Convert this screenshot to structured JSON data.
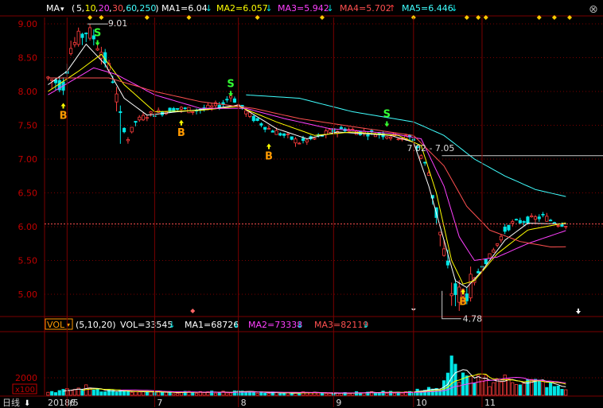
{
  "colors": {
    "bg": "#000000",
    "grid": "#7a0000",
    "axis_text": "#c00000",
    "up": "#ff3c3c",
    "down": "#00e5e5",
    "ma5": "#ffffff",
    "ma10": "#ffff00",
    "ma20": "#ff40ff",
    "ma30": "#ff5050",
    "ma60": "#40ffff",
    "marker_buy": "#ff9900",
    "marker_sell": "#33ff33",
    "diamond": "#ffcc00",
    "dotted_line": "#cccccc"
  },
  "top_legend": {
    "ma_button": "MA",
    "params_open": "(",
    "params": [
      "5",
      "10",
      "20",
      "30",
      "60",
      "250"
    ],
    "params_close": ")",
    "items": [
      {
        "label": "MA1=6.04",
        "arrow": "↓",
        "color": "#ffffff",
        "arrow_color": "#00e5e5"
      },
      {
        "label": "MA2=6.057",
        "arrow": "↓",
        "color": "#ffff00",
        "arrow_color": "#00e5e5"
      },
      {
        "label": "MA3=5.942",
        "arrow": "↓",
        "color": "#ff40ff",
        "arrow_color": "#00e5e5"
      },
      {
        "label": "MA4=5.702",
        "arrow": "↑",
        "color": "#ff5050",
        "arrow_color": "#ff3c3c"
      },
      {
        "label": "MA5=6.446",
        "arrow": "↓",
        "color": "#40ffff",
        "arrow_color": "#00e5e5"
      }
    ],
    "param_colors": [
      "#ffffff",
      "#ffff00",
      "#ff40ff",
      "#ff5050",
      "#40ffff",
      "#40ffff"
    ]
  },
  "vol_legend": {
    "button": "VOL",
    "params": "(5,10,20)",
    "items": [
      {
        "label": "VOL=33545",
        "arrow": "↓",
        "color": "#ffffff",
        "arrow_color": "#00e5e5"
      },
      {
        "label": "MA1=68726",
        "arrow": "↓",
        "color": "#ffffff",
        "arrow_color": "#00e5e5"
      },
      {
        "label": "MA2=73338",
        "arrow": "↓",
        "color": "#ff40ff",
        "arrow_color": "#00e5e5"
      },
      {
        "label": "MA3=82119",
        "arrow": "↓",
        "color": "#ff5050",
        "arrow_color": "#00e5e5"
      }
    ]
  },
  "bottom_bar": {
    "period_label": "日线",
    "period_arrow": "⬇",
    "year_label": "2018/5",
    "x100_label": "x100"
  },
  "close_button": "⊗",
  "chart_data": {
    "type": "candlestick",
    "price_axis": {
      "ylim": [
        4.7,
        9.1
      ],
      "ticks": [
        "9.00",
        "8.50",
        "8.00",
        "7.50",
        "7.00",
        "6.50",
        "6.00",
        "5.50",
        "5.00"
      ]
    },
    "volume_axis": {
      "ylim": [
        0,
        4000
      ],
      "ticks": [
        "2000"
      ],
      "unit": "x100"
    },
    "x_ticks": [
      {
        "label": "6",
        "index": 5
      },
      {
        "label": "7",
        "index": 28
      },
      {
        "label": "8",
        "index": 50
      },
      {
        "label": "9",
        "index": 75
      },
      {
        "label": "10",
        "index": 96
      },
      {
        "label": "11",
        "index": 114
      }
    ],
    "ohlc_keyframes": [
      [
        0,
        8.2
      ],
      [
        4,
        8.1
      ],
      [
        6,
        8.65
      ],
      [
        10,
        8.9
      ],
      [
        12,
        8.8
      ],
      [
        14,
        8.6
      ],
      [
        17,
        8.2
      ],
      [
        19,
        7.6
      ],
      [
        21,
        7.3
      ],
      [
        23,
        7.55
      ],
      [
        26,
        7.65
      ],
      [
        30,
        7.7
      ],
      [
        34,
        7.75
      ],
      [
        38,
        7.72
      ],
      [
        42,
        7.75
      ],
      [
        46,
        7.82
      ],
      [
        48,
        7.95
      ],
      [
        50,
        7.8
      ],
      [
        54,
        7.6
      ],
      [
        58,
        7.45
      ],
      [
        62,
        7.35
      ],
      [
        66,
        7.25
      ],
      [
        70,
        7.3
      ],
      [
        74,
        7.4
      ],
      [
        78,
        7.45
      ],
      [
        82,
        7.4
      ],
      [
        86,
        7.38
      ],
      [
        90,
        7.35
      ],
      [
        94,
        7.32
      ],
      [
        96,
        7.3
      ],
      [
        98,
        7.05
      ],
      [
        100,
        6.8
      ],
      [
        102,
        6.2
      ],
      [
        104,
        5.6
      ],
      [
        106,
        5.05
      ],
      [
        108,
        5.0
      ],
      [
        110,
        5.05
      ],
      [
        112,
        5.2
      ],
      [
        114,
        5.45
      ],
      [
        116,
        5.55
      ],
      [
        118,
        5.75
      ],
      [
        120,
        5.95
      ],
      [
        122,
        6.05
      ],
      [
        126,
        6.1
      ],
      [
        130,
        6.15
      ],
      [
        134,
        6.05
      ],
      [
        136,
        6.04
      ]
    ],
    "volume_keyframes": [
      [
        0,
        4
      ],
      [
        6,
        6
      ],
      [
        10,
        9
      ],
      [
        14,
        6
      ],
      [
        20,
        4
      ],
      [
        30,
        3
      ],
      [
        50,
        4
      ],
      [
        60,
        3
      ],
      [
        80,
        3
      ],
      [
        96,
        4
      ],
      [
        100,
        9
      ],
      [
        103,
        5
      ],
      [
        105,
        22
      ],
      [
        106,
        45
      ],
      [
        107,
        30
      ],
      [
        108,
        18
      ],
      [
        110,
        20
      ],
      [
        112,
        12
      ],
      [
        114,
        22
      ],
      [
        116,
        16
      ],
      [
        120,
        18
      ],
      [
        126,
        16
      ],
      [
        130,
        14
      ],
      [
        136,
        6
      ]
    ],
    "ma_series": [
      {
        "name": "MA5",
        "color_key": "ma5",
        "keyframes": [
          [
            0,
            8.1
          ],
          [
            5,
            8.3
          ],
          [
            10,
            8.7
          ],
          [
            15,
            8.4
          ],
          [
            20,
            7.9
          ],
          [
            26,
            7.65
          ],
          [
            34,
            7.7
          ],
          [
            44,
            7.75
          ],
          [
            50,
            7.8
          ],
          [
            60,
            7.45
          ],
          [
            68,
            7.3
          ],
          [
            76,
            7.4
          ],
          [
            90,
            7.35
          ],
          [
            96,
            7.25
          ],
          [
            100,
            6.6
          ],
          [
            104,
            5.8
          ],
          [
            107,
            5.2
          ],
          [
            110,
            5.1
          ],
          [
            114,
            5.35
          ],
          [
            120,
            5.8
          ],
          [
            126,
            6.05
          ],
          [
            136,
            6.04
          ]
        ]
      },
      {
        "name": "MA10",
        "color_key": "ma10",
        "keyframes": [
          [
            0,
            8.0
          ],
          [
            8,
            8.3
          ],
          [
            14,
            8.55
          ],
          [
            20,
            8.1
          ],
          [
            28,
            7.7
          ],
          [
            40,
            7.72
          ],
          [
            50,
            7.78
          ],
          [
            60,
            7.55
          ],
          [
            70,
            7.35
          ],
          [
            80,
            7.4
          ],
          [
            92,
            7.35
          ],
          [
            98,
            7.2
          ],
          [
            102,
            6.5
          ],
          [
            106,
            5.5
          ],
          [
            109,
            5.15
          ],
          [
            112,
            5.2
          ],
          [
            118,
            5.6
          ],
          [
            126,
            5.95
          ],
          [
            136,
            6.057
          ]
        ]
      },
      {
        "name": "MA20",
        "color_key": "ma20",
        "keyframes": [
          [
            0,
            7.95
          ],
          [
            12,
            8.35
          ],
          [
            18,
            8.25
          ],
          [
            28,
            7.95
          ],
          [
            40,
            7.75
          ],
          [
            52,
            7.75
          ],
          [
            62,
            7.6
          ],
          [
            74,
            7.45
          ],
          [
            90,
            7.38
          ],
          [
            98,
            7.3
          ],
          [
            104,
            6.6
          ],
          [
            108,
            5.85
          ],
          [
            112,
            5.5
          ],
          [
            118,
            5.55
          ],
          [
            126,
            5.75
          ],
          [
            136,
            5.942
          ]
        ]
      },
      {
        "name": "MA30",
        "color_key": "ma30",
        "keyframes": [
          [
            0,
            8.2
          ],
          [
            16,
            8.2
          ],
          [
            28,
            8.0
          ],
          [
            40,
            7.85
          ],
          [
            54,
            7.75
          ],
          [
            66,
            7.6
          ],
          [
            80,
            7.48
          ],
          [
            96,
            7.35
          ],
          [
            104,
            6.9
          ],
          [
            110,
            6.3
          ],
          [
            116,
            5.95
          ],
          [
            124,
            5.78
          ],
          [
            132,
            5.7
          ],
          [
            136,
            5.702
          ]
        ]
      },
      {
        "name": "MA60",
        "color_key": "ma60",
        "keyframes": [
          [
            52,
            7.95
          ],
          [
            66,
            7.9
          ],
          [
            80,
            7.7
          ],
          [
            96,
            7.55
          ],
          [
            104,
            7.35
          ],
          [
            112,
            7.0
          ],
          [
            120,
            6.75
          ],
          [
            128,
            6.55
          ],
          [
            136,
            6.446
          ]
        ]
      }
    ],
    "signals": [
      {
        "type": "B",
        "index": 4,
        "price": 7.9
      },
      {
        "type": "S",
        "index": 13,
        "price": 8.7
      },
      {
        "type": "B",
        "index": 35,
        "price": 7.65
      },
      {
        "type": "S",
        "index": 48,
        "price": 7.95
      },
      {
        "type": "B",
        "index": 58,
        "price": 7.3
      },
      {
        "type": "S",
        "index": 89,
        "price": 7.5
      },
      {
        "type": "B",
        "index": 109,
        "price": 5.15
      }
    ],
    "annotations": [
      {
        "text": "9.01",
        "index": 12,
        "price": 9.01
      },
      {
        "text": "7.02 - 7.05",
        "index": 93,
        "price": 7.05
      },
      {
        "text": "4.78",
        "index": 106,
        "price": 4.78
      }
    ],
    "diamond_indices": [
      11,
      14,
      26,
      37,
      55,
      72,
      96,
      110,
      113,
      115,
      129,
      133,
      138
    ]
  }
}
